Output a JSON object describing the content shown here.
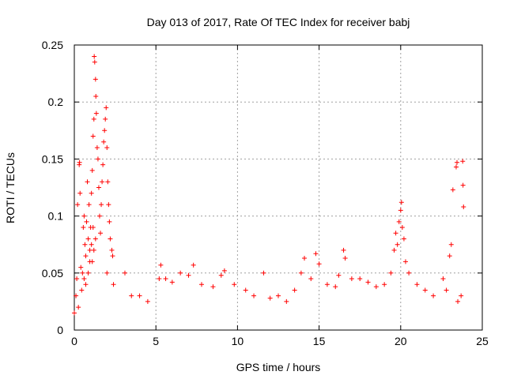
{
  "chart_data": {
    "type": "scatter",
    "title": "Day 013 of 2017, Rate Of TEC Index for receiver babj",
    "xlabel": "GPS time / hours",
    "ylabel": "ROTI / TECUs",
    "xlim": [
      0,
      25
    ],
    "ylim": [
      0,
      0.25
    ],
    "xticks": [
      0,
      5,
      10,
      15,
      20,
      25
    ],
    "xtick_labels": [
      "0",
      "5",
      "10",
      "15",
      "20",
      "25"
    ],
    "yticks": [
      0,
      0.05,
      0.1,
      0.15,
      0.2,
      0.25
    ],
    "ytick_labels": [
      "0",
      "0.05",
      "0.1",
      "0.15",
      "0.2",
      "0.25"
    ],
    "grid": true,
    "marker": "+",
    "series": [
      {
        "name": "ROTI",
        "color": "#ff0000",
        "points": [
          [
            0.0,
            0.015
          ],
          [
            0.1,
            0.03
          ],
          [
            0.15,
            0.045
          ],
          [
            0.2,
            0.11
          ],
          [
            0.25,
            0.02
          ],
          [
            0.3,
            0.145
          ],
          [
            0.32,
            0.147
          ],
          [
            0.35,
            0.12
          ],
          [
            0.4,
            0.055
          ],
          [
            0.45,
            0.035
          ],
          [
            0.5,
            0.05
          ],
          [
            0.55,
            0.09
          ],
          [
            0.6,
            0.1
          ],
          [
            0.65,
            0.075
          ],
          [
            0.7,
            0.065
          ],
          [
            0.75,
            0.095
          ],
          [
            0.8,
            0.13
          ],
          [
            0.85,
            0.08
          ],
          [
            0.9,
            0.11
          ],
          [
            0.95,
            0.07
          ],
          [
            1.0,
            0.09
          ],
          [
            1.05,
            0.12
          ],
          [
            1.1,
            0.14
          ],
          [
            1.15,
            0.17
          ],
          [
            1.2,
            0.185
          ],
          [
            1.22,
            0.24
          ],
          [
            1.25,
            0.235
          ],
          [
            1.3,
            0.22
          ],
          [
            1.32,
            0.205
          ],
          [
            1.35,
            0.19
          ],
          [
            1.4,
            0.16
          ],
          [
            1.45,
            0.15
          ],
          [
            1.5,
            0.125
          ],
          [
            1.55,
            0.1
          ],
          [
            1.6,
            0.085
          ],
          [
            1.65,
            0.11
          ],
          [
            1.7,
            0.13
          ],
          [
            1.75,
            0.145
          ],
          [
            1.8,
            0.165
          ],
          [
            1.85,
            0.175
          ],
          [
            1.9,
            0.185
          ],
          [
            1.95,
            0.195
          ],
          [
            2.0,
            0.16
          ],
          [
            2.05,
            0.13
          ],
          [
            2.1,
            0.11
          ],
          [
            2.15,
            0.095
          ],
          [
            2.2,
            0.08
          ],
          [
            2.3,
            0.07
          ],
          [
            2.35,
            0.065
          ],
          [
            2.4,
            0.04
          ],
          [
            1.1,
            0.06
          ],
          [
            1.2,
            0.07
          ],
          [
            1.3,
            0.08
          ],
          [
            1.05,
            0.075
          ],
          [
            1.15,
            0.09
          ],
          [
            0.6,
            0.045
          ],
          [
            0.7,
            0.04
          ],
          [
            0.85,
            0.05
          ],
          [
            0.95,
            0.06
          ],
          [
            2.0,
            0.05
          ],
          [
            3.1,
            0.05
          ],
          [
            3.5,
            0.03
          ],
          [
            4.0,
            0.03
          ],
          [
            4.5,
            0.025
          ],
          [
            5.2,
            0.045
          ],
          [
            5.3,
            0.057
          ],
          [
            5.6,
            0.045
          ],
          [
            6.0,
            0.042
          ],
          [
            6.5,
            0.05
          ],
          [
            7.0,
            0.048
          ],
          [
            7.3,
            0.057
          ],
          [
            7.8,
            0.04
          ],
          [
            8.5,
            0.038
          ],
          [
            9.0,
            0.048
          ],
          [
            9.2,
            0.052
          ],
          [
            9.8,
            0.04
          ],
          [
            10.5,
            0.035
          ],
          [
            11.0,
            0.03
          ],
          [
            11.6,
            0.05
          ],
          [
            12.0,
            0.028
          ],
          [
            12.5,
            0.03
          ],
          [
            13.0,
            0.025
          ],
          [
            13.5,
            0.035
          ],
          [
            13.9,
            0.05
          ],
          [
            14.1,
            0.063
          ],
          [
            14.5,
            0.045
          ],
          [
            14.8,
            0.067
          ],
          [
            15.0,
            0.058
          ],
          [
            15.5,
            0.04
          ],
          [
            16.0,
            0.038
          ],
          [
            16.2,
            0.048
          ],
          [
            16.5,
            0.07
          ],
          [
            16.6,
            0.063
          ],
          [
            17.0,
            0.045
          ],
          [
            17.5,
            0.045
          ],
          [
            18.0,
            0.042
          ],
          [
            18.5,
            0.038
          ],
          [
            19.0,
            0.04
          ],
          [
            19.4,
            0.05
          ],
          [
            19.6,
            0.07
          ],
          [
            19.7,
            0.085
          ],
          [
            19.8,
            0.075
          ],
          [
            19.9,
            0.095
          ],
          [
            20.0,
            0.105
          ],
          [
            20.05,
            0.112
          ],
          [
            20.1,
            0.09
          ],
          [
            20.2,
            0.08
          ],
          [
            20.3,
            0.06
          ],
          [
            20.5,
            0.05
          ],
          [
            21.0,
            0.04
          ],
          [
            21.5,
            0.035
          ],
          [
            22.0,
            0.03
          ],
          [
            22.6,
            0.045
          ],
          [
            22.8,
            0.035
          ],
          [
            23.0,
            0.065
          ],
          [
            23.1,
            0.075
          ],
          [
            23.2,
            0.123
          ],
          [
            23.4,
            0.143
          ],
          [
            23.45,
            0.147
          ],
          [
            23.8,
            0.148
          ],
          [
            23.82,
            0.127
          ],
          [
            23.85,
            0.108
          ],
          [
            23.7,
            0.03
          ],
          [
            23.5,
            0.025
          ]
        ]
      }
    ]
  }
}
